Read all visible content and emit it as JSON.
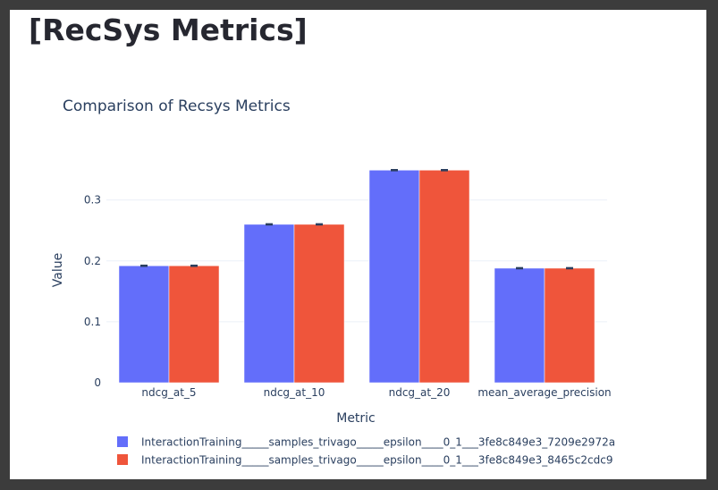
{
  "page": {
    "title": "[RecSys Metrics]"
  },
  "chart_data": {
    "type": "bar",
    "title": "Comparison of Recsys Metrics",
    "xlabel": "Metric",
    "ylabel": "Value",
    "categories": [
      "ndcg_at_5",
      "ndcg_at_10",
      "ndcg_at_20",
      "mean_average_precision"
    ],
    "ylim": [
      0,
      0.37
    ],
    "yticks": [
      0,
      0.1,
      0.2,
      0.3
    ],
    "ytick_labels": [
      "0",
      "0.1",
      "0.2",
      "0.3"
    ],
    "grid": true,
    "legend_position": "bottom",
    "error_bars": true,
    "series": [
      {
        "name": "InteractionTraining_____samples_trivago_____epsilon____0_1___3fe8c849e3_7209e2972a",
        "color": "#636efa",
        "values": [
          0.192,
          0.26,
          0.349,
          0.188
        ],
        "error": [
          0.0008,
          0.0008,
          0.0008,
          0.0008
        ]
      },
      {
        "name": "InteractionTraining_____samples_trivago_____epsilon____0_1___3fe8c849e3_8465c2cdc9",
        "color": "#ef553b",
        "values": [
          0.192,
          0.26,
          0.349,
          0.188
        ],
        "error": [
          0.0008,
          0.0008,
          0.0008,
          0.0008
        ]
      }
    ]
  }
}
